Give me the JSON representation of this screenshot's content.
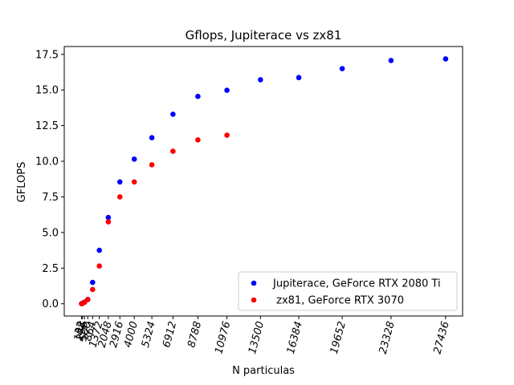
{
  "chart_data": {
    "type": "scatter",
    "title": "Gflops, Jupiterace vs zx81",
    "xlabel": "N particulas",
    "ylabel": "GFLOPS",
    "xlim": [
      -1271,
      28715
    ],
    "ylim": [
      -0.86,
      18.05
    ],
    "x_ticks": [
      32,
      108,
      256,
      500,
      864,
      1372,
      2048,
      2916,
      4000,
      5324,
      6912,
      8788,
      10976,
      13500,
      16384,
      19652,
      23328,
      27436
    ],
    "x_tick_labels": [
      "32",
      "108",
      "256",
      "500",
      "864",
      "1372",
      "2048",
      "2916",
      "4000",
      "5324",
      "6912",
      "8788",
      "10976",
      "13500",
      "16384",
      "19652",
      "23328",
      "27436"
    ],
    "x_tick_rotation": 75,
    "y_ticks": [
      0.0,
      2.5,
      5.0,
      7.5,
      10.0,
      12.5,
      15.0,
      17.5
    ],
    "y_tick_labels": [
      "0.0",
      "2.5",
      "5.0",
      "7.5",
      "10.0",
      "12.5",
      "15.0",
      "17.5"
    ],
    "grid": false,
    "legend_position": "lower-right",
    "series": [
      {
        "name": "Jupiterace, GeForce RTX 2080 Ti",
        "color": "#0000ff",
        "x": [
          32,
          108,
          256,
          500,
          864,
          1372,
          2048,
          2916,
          4000,
          5324,
          6912,
          8788,
          10976,
          13500,
          16384,
          19652,
          23328,
          27436
        ],
        "y": [
          0.01,
          0.04,
          0.12,
          0.3,
          1.5,
          3.75,
          6.05,
          8.55,
          10.15,
          11.65,
          13.3,
          14.55,
          14.98,
          15.72,
          15.87,
          16.5,
          17.07,
          17.18
        ]
      },
      {
        "name": " zx81, GeForce RTX 3070",
        "color": "#ff0000",
        "x": [
          32,
          108,
          256,
          500,
          864,
          1372,
          2048,
          2916,
          4000,
          5324,
          6912,
          8788,
          10976
        ],
        "y": [
          0.0,
          0.03,
          0.1,
          0.3,
          1.0,
          2.65,
          5.75,
          7.5,
          8.55,
          9.75,
          10.7,
          11.5,
          11.83
        ]
      }
    ]
  }
}
